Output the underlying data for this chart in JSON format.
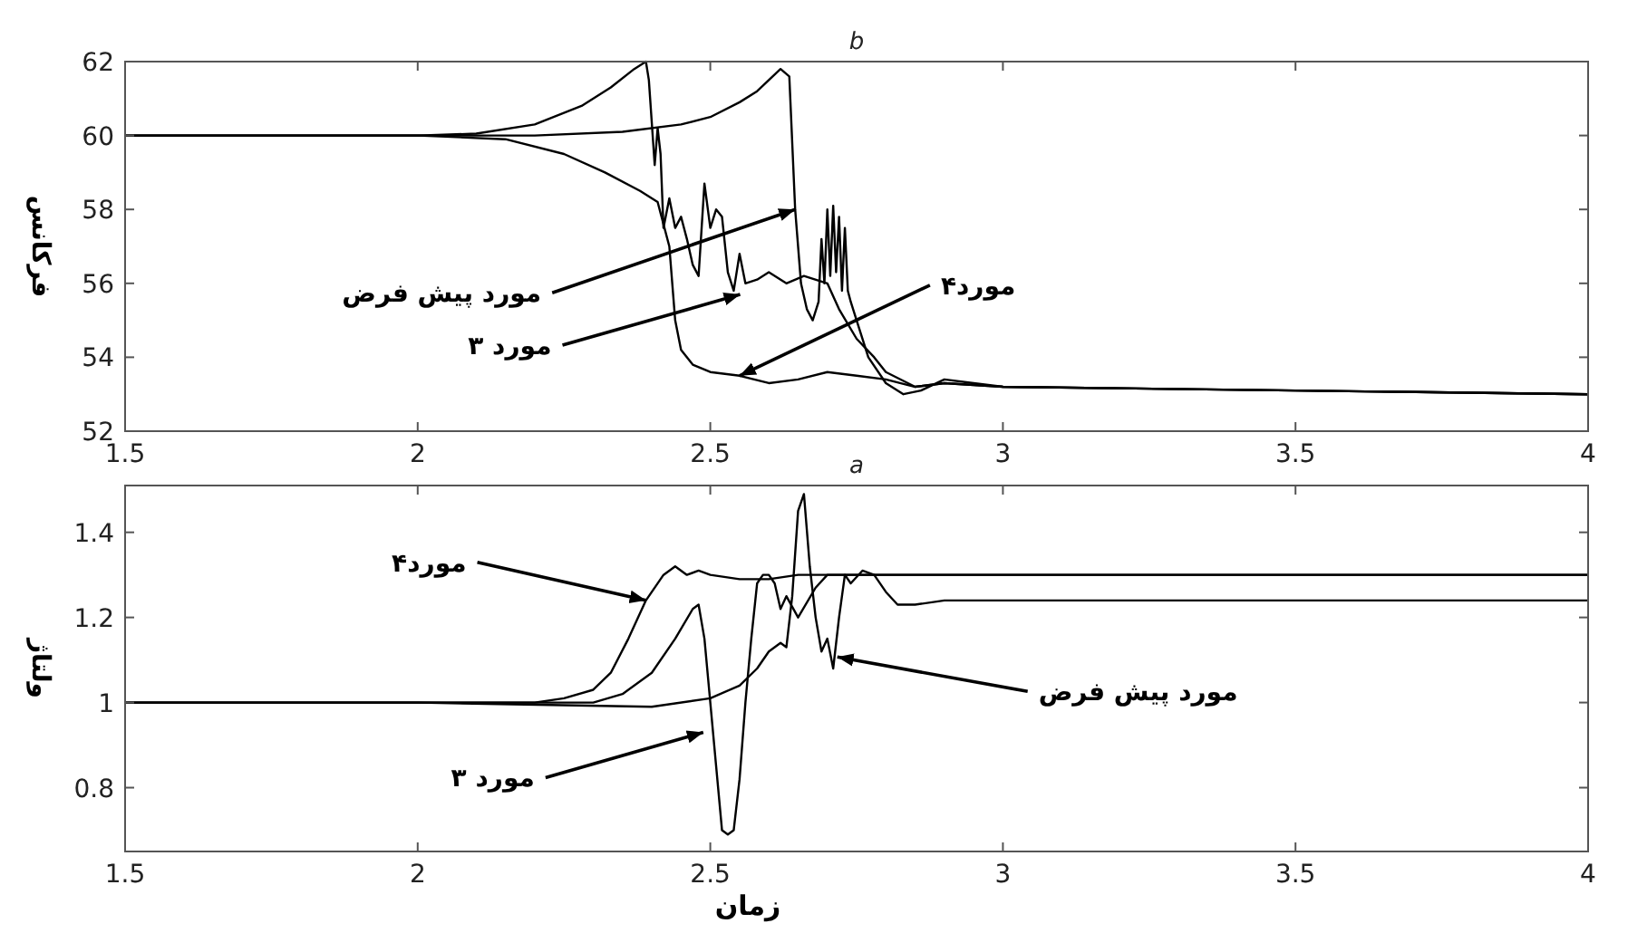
{
  "chart_data": [
    {
      "type": "line",
      "title": "b",
      "ylabel": "فرکانس",
      "xlim": [
        1.5,
        4
      ],
      "ylim": [
        52,
        62
      ],
      "xticks": [
        1.5,
        2,
        2.5,
        3,
        3.5,
        4
      ],
      "yticks": [
        52,
        54,
        56,
        58,
        60,
        62
      ],
      "grid": false,
      "line_style": "solid",
      "marker": "none",
      "series": [
        {
          "color": "#000000",
          "x": [
            1.5,
            2.0,
            2.1,
            2.2,
            2.28,
            2.33,
            2.37,
            2.39,
            2.395,
            2.405,
            2.41,
            2.415,
            2.42,
            2.43,
            2.44,
            2.45,
            2.46,
            2.47,
            2.48,
            2.49,
            2.5,
            2.51,
            2.52,
            2.53,
            2.54,
            2.55,
            2.56,
            2.58,
            2.6,
            2.63,
            2.66,
            2.7,
            2.72,
            2.75,
            2.78,
            2.8,
            2.85,
            2.9,
            3.0,
            3.5,
            4.0
          ],
          "values": [
            60,
            60,
            60.05,
            60.3,
            60.8,
            61.3,
            61.8,
            62,
            61.5,
            59.2,
            60.2,
            59.5,
            57.5,
            58.3,
            57.5,
            57.8,
            57.2,
            56.5,
            56.2,
            58.7,
            57.5,
            58,
            57.8,
            56.3,
            55.8,
            56.8,
            56.0,
            56.1,
            56.3,
            56.0,
            56.2,
            56.0,
            55.3,
            54.5,
            54.0,
            53.6,
            53.2,
            53.3,
            53.2,
            53.1,
            53.0
          ]
        },
        {
          "color": "#000000",
          "x": [
            1.5,
            2.0,
            2.2,
            2.35,
            2.45,
            2.5,
            2.55,
            2.58,
            2.6,
            2.62,
            2.635,
            2.645,
            2.655,
            2.665,
            2.675,
            2.685,
            2.69,
            2.695,
            2.7,
            2.705,
            2.71,
            2.715,
            2.72,
            2.725,
            2.73,
            2.735,
            2.74,
            2.75,
            2.77,
            2.8,
            2.83,
            2.86,
            2.9,
            2.95,
            3.0,
            3.5,
            4.0
          ],
          "values": [
            60,
            60,
            60,
            60.1,
            60.3,
            60.5,
            60.9,
            61.2,
            61.5,
            61.8,
            61.6,
            58,
            56,
            55.3,
            55,
            55.5,
            57.2,
            56,
            58,
            56.2,
            58.1,
            56.3,
            57.8,
            55.8,
            57.5,
            55.8,
            55.5,
            55,
            54,
            53.3,
            53,
            53.1,
            53.4,
            53.3,
            53.2,
            53.1,
            53.0
          ]
        },
        {
          "color": "#000000",
          "x": [
            1.5,
            2.0,
            2.15,
            2.25,
            2.32,
            2.38,
            2.41,
            2.43,
            2.44,
            2.45,
            2.47,
            2.5,
            2.55,
            2.6,
            2.65,
            2.7,
            2.75,
            2.8,
            2.85,
            2.9,
            3.0,
            3.5,
            4.0
          ],
          "values": [
            60,
            60,
            59.9,
            59.5,
            59.0,
            58.5,
            58.2,
            57,
            55,
            54.2,
            53.8,
            53.6,
            53.5,
            53.3,
            53.4,
            53.6,
            53.5,
            53.4,
            53.2,
            53.3,
            53.2,
            53.1,
            53.0
          ]
        }
      ],
      "annotations": [
        {
          "text": "مورد پیش فرض",
          "x": 2.645,
          "y": 58
        },
        {
          "text": "مورد ۳",
          "x": 2.551,
          "y": 55.7
        },
        {
          "text": "مورد۴",
          "x": 2.55,
          "y": 53.5
        }
      ]
    },
    {
      "type": "line",
      "title": "a",
      "xlabel": "زمان",
      "ylabel": "ولتاژ",
      "xlim": [
        1.5,
        4
      ],
      "ylim": [
        0.65,
        1.51
      ],
      "xticks": [
        1.5,
        2,
        2.5,
        3,
        3.5,
        4
      ],
      "yticks": [
        0.8,
        1,
        1.2,
        1.4
      ],
      "grid": false,
      "line_style": "solid",
      "marker": "none",
      "series": [
        {
          "color": "#000000",
          "x": [
            1.5,
            2.0,
            2.2,
            2.25,
            2.3,
            2.33,
            2.36,
            2.39,
            2.42,
            2.44,
            2.46,
            2.48,
            2.5,
            2.55,
            2.6,
            2.65,
            2.7,
            2.8,
            3.0,
            3.5,
            4.0
          ],
          "values": [
            1.0,
            1.0,
            1.0,
            1.01,
            1.03,
            1.07,
            1.15,
            1.24,
            1.3,
            1.32,
            1.3,
            1.31,
            1.3,
            1.29,
            1.29,
            1.3,
            1.3,
            1.3,
            1.3,
            1.3,
            1.3
          ]
        },
        {
          "color": "#000000",
          "x": [
            1.5,
            2.0,
            2.3,
            2.35,
            2.4,
            2.44,
            2.47,
            2.48,
            2.49,
            2.5,
            2.51,
            2.52,
            2.53,
            2.54,
            2.55,
            2.56,
            2.57,
            2.58,
            2.59,
            2.6,
            2.61,
            2.62,
            2.63,
            2.65,
            2.68,
            2.7,
            2.75,
            3.0,
            3.5,
            4.0
          ],
          "values": [
            1.0,
            1.0,
            1.0,
            1.02,
            1.07,
            1.15,
            1.22,
            1.23,
            1.15,
            1.0,
            0.85,
            0.7,
            0.69,
            0.7,
            0.82,
            1.0,
            1.15,
            1.28,
            1.3,
            1.3,
            1.28,
            1.22,
            1.25,
            1.2,
            1.27,
            1.3,
            1.3,
            1.3,
            1.3,
            1.3
          ]
        },
        {
          "color": "#000000",
          "x": [
            1.5,
            2.0,
            2.4,
            2.5,
            2.55,
            2.58,
            2.6,
            2.62,
            2.63,
            2.64,
            2.65,
            2.66,
            2.67,
            2.68,
            2.69,
            2.7,
            2.71,
            2.72,
            2.73,
            2.74,
            2.76,
            2.78,
            2.8,
            2.82,
            2.85,
            2.9,
            3.0,
            3.5,
            4.0
          ],
          "values": [
            1.0,
            1.0,
            0.99,
            1.01,
            1.04,
            1.08,
            1.12,
            1.14,
            1.13,
            1.25,
            1.45,
            1.49,
            1.32,
            1.2,
            1.12,
            1.15,
            1.08,
            1.2,
            1.3,
            1.28,
            1.31,
            1.3,
            1.26,
            1.23,
            1.23,
            1.24,
            1.24,
            1.24,
            1.24
          ]
        }
      ],
      "annotations": [
        {
          "text": "مورد۴",
          "x": 2.39,
          "y": 1.24
        },
        {
          "text": "مورد ۳",
          "x": 2.488,
          "y": 0.93
        },
        {
          "text": "مورد پیش فرض",
          "x": 2.717,
          "y": 1.107
        }
      ]
    }
  ]
}
